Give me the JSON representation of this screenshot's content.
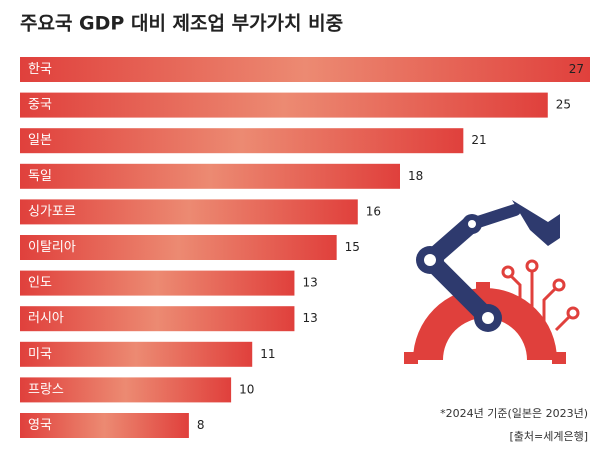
{
  "chart_data": {
    "type": "bar",
    "orientation": "horizontal",
    "title": "주요국 GDP 대비 제조업 부가가치 비중",
    "categories": [
      "한국",
      "중국",
      "일본",
      "독일",
      "싱가포르",
      "이탈리아",
      "인도",
      "러시아",
      "미국",
      "프랑스",
      "영국"
    ],
    "values": [
      27,
      25,
      21,
      18,
      16,
      15,
      13,
      13,
      11,
      10,
      8
    ],
    "color": "#e0403c",
    "notes": [
      "*2024년 기준(일본은 2023년)",
      "[출처=세계은행]"
    ]
  }
}
